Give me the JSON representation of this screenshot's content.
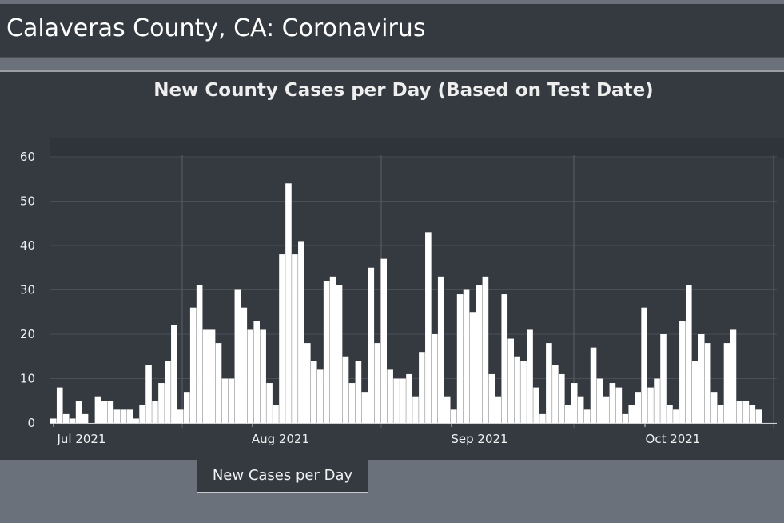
{
  "header": {
    "title": "Calaveras County, CA: Coronavirus"
  },
  "chart_data": {
    "type": "bar",
    "title": "New County Cases per Day (Based on Test Date)",
    "xlabel": "",
    "ylabel": "",
    "ylim": [
      0,
      60
    ],
    "yticks": [
      "0",
      "10",
      "20",
      "30",
      "40",
      "50",
      "60"
    ],
    "xticks": [
      "Jul 2021",
      "Aug 2021",
      "Sep 2021",
      "Oct 2021"
    ],
    "grid": true,
    "colors": {
      "bar": "#ffffff",
      "background": "#353a41",
      "grid": "#4a4f56"
    },
    "start_date": "2021-06-26",
    "values": [
      1,
      8,
      2,
      1,
      5,
      2,
      0,
      6,
      5,
      5,
      3,
      3,
      3,
      1,
      4,
      13,
      5,
      9,
      14,
      22,
      3,
      7,
      26,
      31,
      21,
      21,
      18,
      10,
      10,
      30,
      26,
      21,
      23,
      21,
      9,
      4,
      38,
      54,
      38,
      41,
      18,
      14,
      12,
      32,
      33,
      31,
      15,
      9,
      14,
      7,
      35,
      18,
      37,
      12,
      10,
      10,
      11,
      6,
      16,
      43,
      20,
      33,
      6,
      3,
      29,
      30,
      25,
      31,
      33,
      11,
      6,
      29,
      19,
      15,
      14,
      21,
      8,
      2,
      18,
      13,
      11,
      4,
      9,
      6,
      3,
      17,
      10,
      6,
      9,
      8,
      2,
      4,
      7,
      26,
      8,
      10,
      20,
      4,
      3,
      23,
      31,
      14,
      20,
      18,
      7,
      4,
      18,
      21,
      5,
      5,
      4,
      3
    ]
  },
  "tabs": [
    {
      "label": "New Cases per Day"
    }
  ]
}
